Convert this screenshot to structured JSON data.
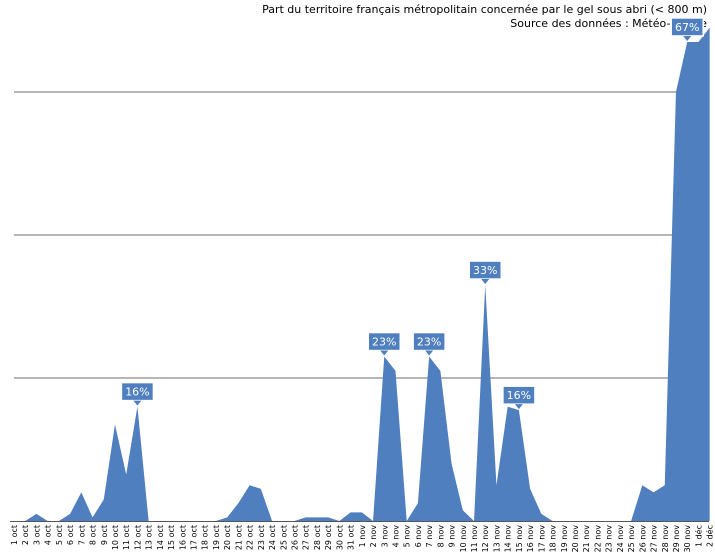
{
  "chart_data": {
    "type": "area",
    "title": "Part du territoire français métropolitain concernée par le gel sous abri (< 800 m)",
    "subtitle": "Source des données : Météo-France",
    "xlabel": "",
    "ylabel": "",
    "ylim": [
      0,
      80
    ],
    "grid": true,
    "gridlines": [
      20,
      40,
      60
    ],
    "color": "#4f7fbf",
    "categories": [
      "1 oct",
      "2 oct",
      "3 oct",
      "4 oct",
      "5 oct",
      "6 oct",
      "7 oct",
      "8 oct",
      "9 oct",
      "10 oct",
      "11 oct",
      "12 oct",
      "13 oct",
      "14 oct",
      "15 oct",
      "16 oct",
      "17 oct",
      "18 oct",
      "19 oct",
      "20 oct",
      "21 oct",
      "22 oct",
      "23 oct",
      "24 oct",
      "25 oct",
      "26 oct",
      "27 oct",
      "28 oct",
      "29 oct",
      "30 oct",
      "31 oct",
      "1 nov",
      "2 nov",
      "3 nov",
      "4 nov",
      "5 nov",
      "6 nov",
      "7 nov",
      "8 nov",
      "9 nov",
      "10 nov",
      "11 nov",
      "12 nov",
      "13 nov",
      "14 nov",
      "15 nov",
      "16 nov",
      "17 nov",
      "18 nov",
      "19 nov",
      "20 nov",
      "21 nov",
      "22 nov",
      "23 nov",
      "24 nov",
      "25 nov",
      "26 nov",
      "27 nov",
      "28 nov",
      "29 nov",
      "30 nov",
      "1 déc",
      "2 déc"
    ],
    "values": [
      0,
      0,
      1,
      0,
      0,
      1,
      4,
      0.5,
      3,
      13.5,
      6.5,
      16,
      0,
      0,
      0,
      0,
      0,
      0,
      0,
      0.5,
      2.5,
      5,
      4.5,
      0,
      0,
      0,
      0.5,
      0.5,
      0.5,
      0,
      1.2,
      1.2,
      0,
      23,
      21,
      0,
      2.5,
      23,
      21,
      8,
      1.5,
      0,
      33,
      5,
      16,
      15.5,
      4.5,
      1,
      0,
      0,
      0,
      0,
      0,
      0,
      0,
      0,
      5,
      4,
      5,
      60,
      67,
      67,
      69
    ],
    "data_labels": [
      {
        "category": "12 oct",
        "text": "16%"
      },
      {
        "category": "3 nov",
        "text": "23%"
      },
      {
        "category": "7 nov",
        "text": "23%"
      },
      {
        "category": "12 nov",
        "text": "33%"
      },
      {
        "category": "15 nov",
        "text": "16%"
      },
      {
        "category": "30 nov",
        "text": "67%"
      }
    ]
  }
}
